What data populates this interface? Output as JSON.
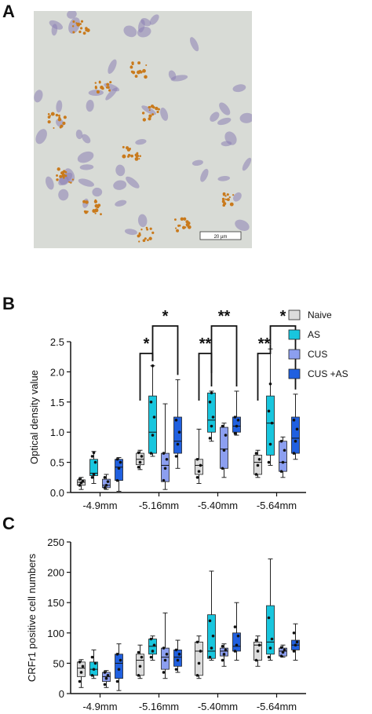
{
  "panels": {
    "a_label": "A",
    "b_label": "B",
    "c_label": "C"
  },
  "micrograph": {
    "scale_bar_label": "20 µm",
    "colors": {
      "background": "#d9dcd6",
      "nuclei": "#8d7fb4",
      "stain": "#c97a1c"
    }
  },
  "legend": [
    {
      "label": "Naive",
      "color": "#dcdcdc"
    },
    {
      "label": "AS",
      "color": "#18c6de"
    },
    {
      "label": "CUS",
      "color": "#8c9ff0"
    },
    {
      "label": "CUS +AS",
      "color": "#2060e0"
    }
  ],
  "chart_data": [
    {
      "type": "boxplot",
      "panel": "B",
      "ylabel": "Optical density value",
      "ylim": [
        0,
        2.5
      ],
      "yticks": [
        "0.0",
        "0.5",
        "1.0",
        "1.5",
        "2.0",
        "2.5"
      ],
      "categories": [
        "-4.9mm",
        "-5.16mm",
        "-5.40mm",
        "-5.64mm"
      ],
      "series": [
        {
          "name": "Naive",
          "boxes": [
            {
              "min": 0.05,
              "q1": 0.12,
              "median": 0.17,
              "q3": 0.21,
              "max": 0.25,
              "points": [
                0.12,
                0.16,
                0.19,
                0.22
              ]
            },
            {
              "min": 0.38,
              "q1": 0.46,
              "median": 0.55,
              "q3": 0.65,
              "max": 0.7,
              "points": [
                0.42,
                0.5,
                0.6,
                0.66
              ]
            },
            {
              "min": 0.15,
              "q1": 0.3,
              "median": 0.45,
              "q3": 0.55,
              "max": 1.05,
              "points": [
                0.25,
                0.35,
                0.45,
                0.55
              ]
            },
            {
              "min": 0.25,
              "q1": 0.3,
              "median": 0.5,
              "q3": 0.62,
              "max": 0.7,
              "points": [
                0.3,
                0.45,
                0.55,
                0.65
              ]
            }
          ]
        },
        {
          "name": "AS",
          "boxes": [
            {
              "min": 0.15,
              "q1": 0.28,
              "median": 0.32,
              "q3": 0.55,
              "max": 0.68,
              "points": [
                0.25,
                0.3,
                0.5,
                0.6,
                0.66
              ]
            },
            {
              "min": 0.6,
              "q1": 0.65,
              "median": 1.0,
              "q3": 1.6,
              "max": 2.1,
              "points": [
                0.65,
                0.95,
                1.25,
                1.5,
                2.1
              ]
            },
            {
              "min": 0.85,
              "q1": 1.0,
              "median": 1.2,
              "q3": 1.65,
              "max": 1.68,
              "points": [
                0.9,
                1.1,
                1.25,
                1.5,
                1.65
              ]
            },
            {
              "min": 0.45,
              "q1": 0.62,
              "median": 1.15,
              "q3": 1.6,
              "max": 2.38,
              "points": [
                0.5,
                0.8,
                1.15,
                1.35,
                1.8
              ]
            }
          ]
        },
        {
          "name": "CUS",
          "boxes": [
            {
              "min": 0.05,
              "q1": 0.08,
              "median": 0.12,
              "q3": 0.22,
              "max": 0.3,
              "points": [
                0.08,
                0.12,
                0.18,
                0.25
              ]
            },
            {
              "min": 0.05,
              "q1": 0.18,
              "median": 0.45,
              "q3": 0.65,
              "max": 1.47,
              "points": [
                0.2,
                0.4,
                0.55,
                0.65
              ]
            },
            {
              "min": 0.25,
              "q1": 0.4,
              "median": 0.72,
              "q3": 1.08,
              "max": 1.15,
              "points": [
                0.4,
                0.7,
                0.95,
                1.1
              ]
            },
            {
              "min": 0.25,
              "q1": 0.35,
              "median": 0.5,
              "q3": 0.85,
              "max": 0.92,
              "points": [
                0.35,
                0.5,
                0.7,
                0.85
              ]
            }
          ]
        },
        {
          "name": "CUS +AS",
          "boxes": [
            {
              "min": 0.02,
              "q1": 0.2,
              "median": 0.42,
              "q3": 0.55,
              "max": 0.58,
              "points": [
                0.2,
                0.4,
                0.5,
                0.55
              ]
            },
            {
              "min": 0.4,
              "q1": 0.65,
              "median": 0.85,
              "q3": 1.25,
              "max": 1.87,
              "points": [
                0.6,
                0.8,
                1.0,
                1.2
              ]
            },
            {
              "min": 0.95,
              "q1": 1.0,
              "median": 1.1,
              "q3": 1.25,
              "max": 1.68,
              "points": [
                0.98,
                1.1,
                1.2,
                1.25
              ]
            },
            {
              "min": 0.55,
              "q1": 0.65,
              "median": 0.9,
              "q3": 1.25,
              "max": 1.63,
              "points": [
                0.65,
                0.85,
                1.05,
                1.2
              ]
            }
          ]
        }
      ],
      "significance": [
        {
          "group": 1,
          "from": 0,
          "to": 1,
          "label": "*"
        },
        {
          "group": 1,
          "from": 1,
          "to": 3,
          "label": "*"
        },
        {
          "group": 2,
          "from": 0,
          "to": 1,
          "label": "**"
        },
        {
          "group": 2,
          "from": 1,
          "to": 3,
          "label": "**"
        },
        {
          "group": 3,
          "from": 0,
          "to": 1,
          "label": "**"
        },
        {
          "group": 3,
          "from": 1,
          "to": 3,
          "label": "*"
        }
      ],
      "legend_position": "right"
    },
    {
      "type": "boxplot",
      "panel": "C",
      "ylabel": "CRFr1 positive cell numbers",
      "ylim": [
        0,
        250
      ],
      "yticks": [
        "0",
        "50",
        "100",
        "150",
        "200",
        "250"
      ],
      "categories": [
        "-4.9mm",
        "-5.16mm",
        "-5.40mm",
        "-5.64mm"
      ],
      "series": [
        {
          "name": "Naive",
          "boxes": [
            {
              "min": 10,
              "q1": 28,
              "median": 42,
              "q3": 52,
              "max": 56,
              "points": [
                20,
                35,
                45,
                52
              ]
            },
            {
              "min": 25,
              "q1": 30,
              "median": 55,
              "q3": 65,
              "max": 80,
              "points": [
                30,
                45,
                60,
                68
              ]
            },
            {
              "min": 25,
              "q1": 30,
              "median": 70,
              "q3": 85,
              "max": 95,
              "points": [
                30,
                50,
                70,
                85
              ]
            },
            {
              "min": 45,
              "q1": 55,
              "median": 80,
              "q3": 85,
              "max": 95,
              "points": [
                55,
                70,
                80,
                88
              ]
            }
          ]
        },
        {
          "name": "AS",
          "boxes": [
            {
              "min": 25,
              "q1": 30,
              "median": 40,
              "q3": 52,
              "max": 72,
              "points": [
                30,
                40,
                50,
                60
              ]
            },
            {
              "min": 55,
              "q1": 65,
              "median": 78,
              "q3": 90,
              "max": 95,
              "points": [
                60,
                70,
                80,
                90
              ]
            },
            {
              "min": 55,
              "q1": 58,
              "median": 70,
              "q3": 130,
              "max": 202,
              "points": [
                60,
                75,
                95,
                120
              ]
            },
            {
              "min": 55,
              "q1": 65,
              "median": 85,
              "q3": 145,
              "max": 222,
              "points": [
                60,
                75,
                90,
                125
              ]
            }
          ]
        },
        {
          "name": "CUS",
          "boxes": [
            {
              "min": 10,
              "q1": 20,
              "median": 28,
              "q3": 35,
              "max": 38,
              "points": [
                15,
                25,
                30,
                35
              ]
            },
            {
              "min": 25,
              "q1": 40,
              "median": 60,
              "q3": 75,
              "max": 133,
              "points": [
                35,
                55,
                65,
                75
              ]
            },
            {
              "min": 45,
              "q1": 62,
              "median": 70,
              "q3": 75,
              "max": 82,
              "points": [
                55,
                65,
                72,
                78
              ]
            },
            {
              "min": 60,
              "q1": 62,
              "median": 70,
              "q3": 75,
              "max": 80,
              "points": [
                62,
                68,
                72,
                76
              ]
            }
          ]
        },
        {
          "name": "CUS +AS",
          "boxes": [
            {
              "min": 5,
              "q1": 25,
              "median": 50,
              "q3": 65,
              "max": 82,
              "points": [
                20,
                40,
                55,
                65
              ]
            },
            {
              "min": 35,
              "q1": 45,
              "median": 60,
              "q3": 72,
              "max": 88,
              "points": [
                40,
                55,
                65,
                72
              ]
            },
            {
              "min": 55,
              "q1": 70,
              "median": 78,
              "q3": 100,
              "max": 150,
              "points": [
                70,
                80,
                95,
                110
              ]
            },
            {
              "min": 55,
              "q1": 72,
              "median": 80,
              "q3": 88,
              "max": 115,
              "points": [
                70,
                80,
                85,
                100
              ]
            }
          ]
        }
      ]
    }
  ]
}
